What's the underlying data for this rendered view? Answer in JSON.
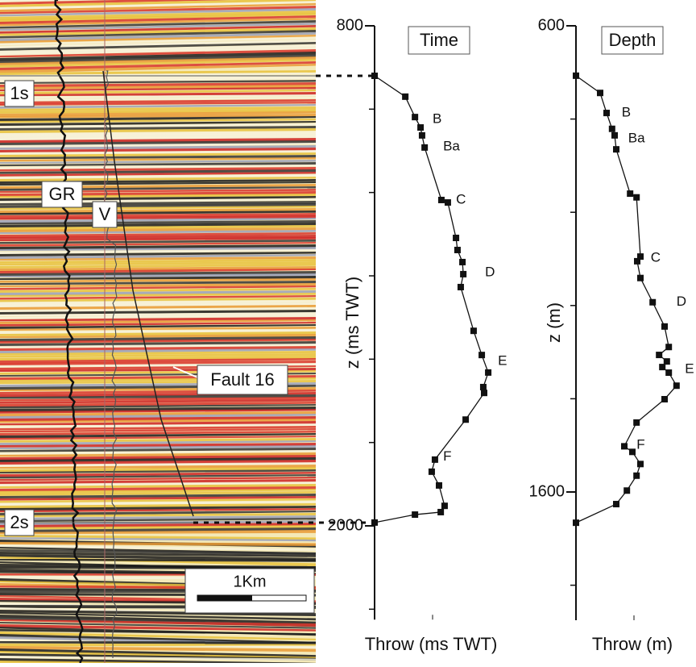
{
  "seismic_panel": {
    "labels": {
      "time_1s": "1s",
      "time_2s": "2s",
      "gr_log": "GR",
      "v_log": "V",
      "fault": "Fault 16",
      "scale_bar": "1Km"
    }
  },
  "chart_data": [
    {
      "type": "line",
      "title": "Time",
      "ylabel": "z (ms TWT)",
      "xlabel": "Throw (ms TWT)",
      "color": "#111111",
      "y_inverted": true,
      "ylim": [
        800,
        2225
      ],
      "yticks": [
        800,
        2000
      ],
      "minor_yticks": [
        1000,
        1200,
        1400,
        1600,
        1800,
        2200
      ],
      "xlim": [
        0,
        60
      ],
      "x": [
        0,
        14.3,
        18.8,
        21.4,
        22.1,
        23.3,
        31.1,
        34.1,
        37.9,
        38.6,
        40.9,
        41.3,
        40.1,
        46.1,
        49.9,
        52.9,
        50.6,
        51,
        42.4,
        28.1,
        26.6,
        30,
        32.6,
        30.8,
        18.8,
        0
      ],
      "y": [
        920,
        970,
        1019,
        1044,
        1063,
        1092,
        1218,
        1224,
        1309,
        1338,
        1367,
        1396,
        1427,
        1532,
        1590,
        1632,
        1667,
        1681,
        1745,
        1841,
        1870,
        1903,
        1952,
        1967,
        1973,
        1992
      ],
      "annotations": [
        {
          "text": "B",
          "x": 27,
          "y": 1025
        },
        {
          "text": "Ba",
          "x": 31.9,
          "y": 1090
        },
        {
          "text": "C",
          "x": 37.9,
          "y": 1218
        },
        {
          "text": "D",
          "x": 51.4,
          "y": 1392
        },
        {
          "text": "E",
          "x": 57.4,
          "y": 1605
        },
        {
          "text": "F",
          "x": 31.9,
          "y": 1835
        }
      ]
    },
    {
      "type": "line",
      "title": "Depth",
      "ylabel": "z (m)",
      "xlabel": "Throw (m)",
      "color": "#111111",
      "y_inverted": true,
      "ylim": [
        600,
        1875
      ],
      "yticks": [
        600,
        1600
      ],
      "minor_yticks": [
        800,
        1000,
        1200,
        1400,
        1800
      ],
      "xlim": [
        0,
        200
      ],
      "x": [
        0,
        37.5,
        47.5,
        56,
        60,
        62.5,
        84,
        94,
        100,
        95,
        100,
        119,
        137.5,
        144,
        129,
        141,
        134,
        144,
        156,
        137.5,
        94,
        75,
        87.5,
        100,
        94,
        79,
        62.5,
        0
      ],
      "y": [
        707,
        744,
        787,
        821,
        835,
        865,
        960,
        968,
        1095,
        1105,
        1141,
        1193,
        1245,
        1289,
        1306,
        1320,
        1332,
        1344,
        1372,
        1401,
        1451,
        1502,
        1514,
        1540,
        1565,
        1597,
        1626,
        1666
      ],
      "annotations": [
        {
          "text": "B",
          "x": 71,
          "y": 787
        },
        {
          "text": "Ba",
          "x": 81,
          "y": 842
        },
        {
          "text": "C",
          "x": 116,
          "y": 1098
        },
        {
          "text": "D",
          "x": 156,
          "y": 1193
        },
        {
          "text": "E",
          "x": 169,
          "y": 1337
        },
        {
          "text": "F",
          "x": 94,
          "y": 1500
        }
      ]
    }
  ]
}
